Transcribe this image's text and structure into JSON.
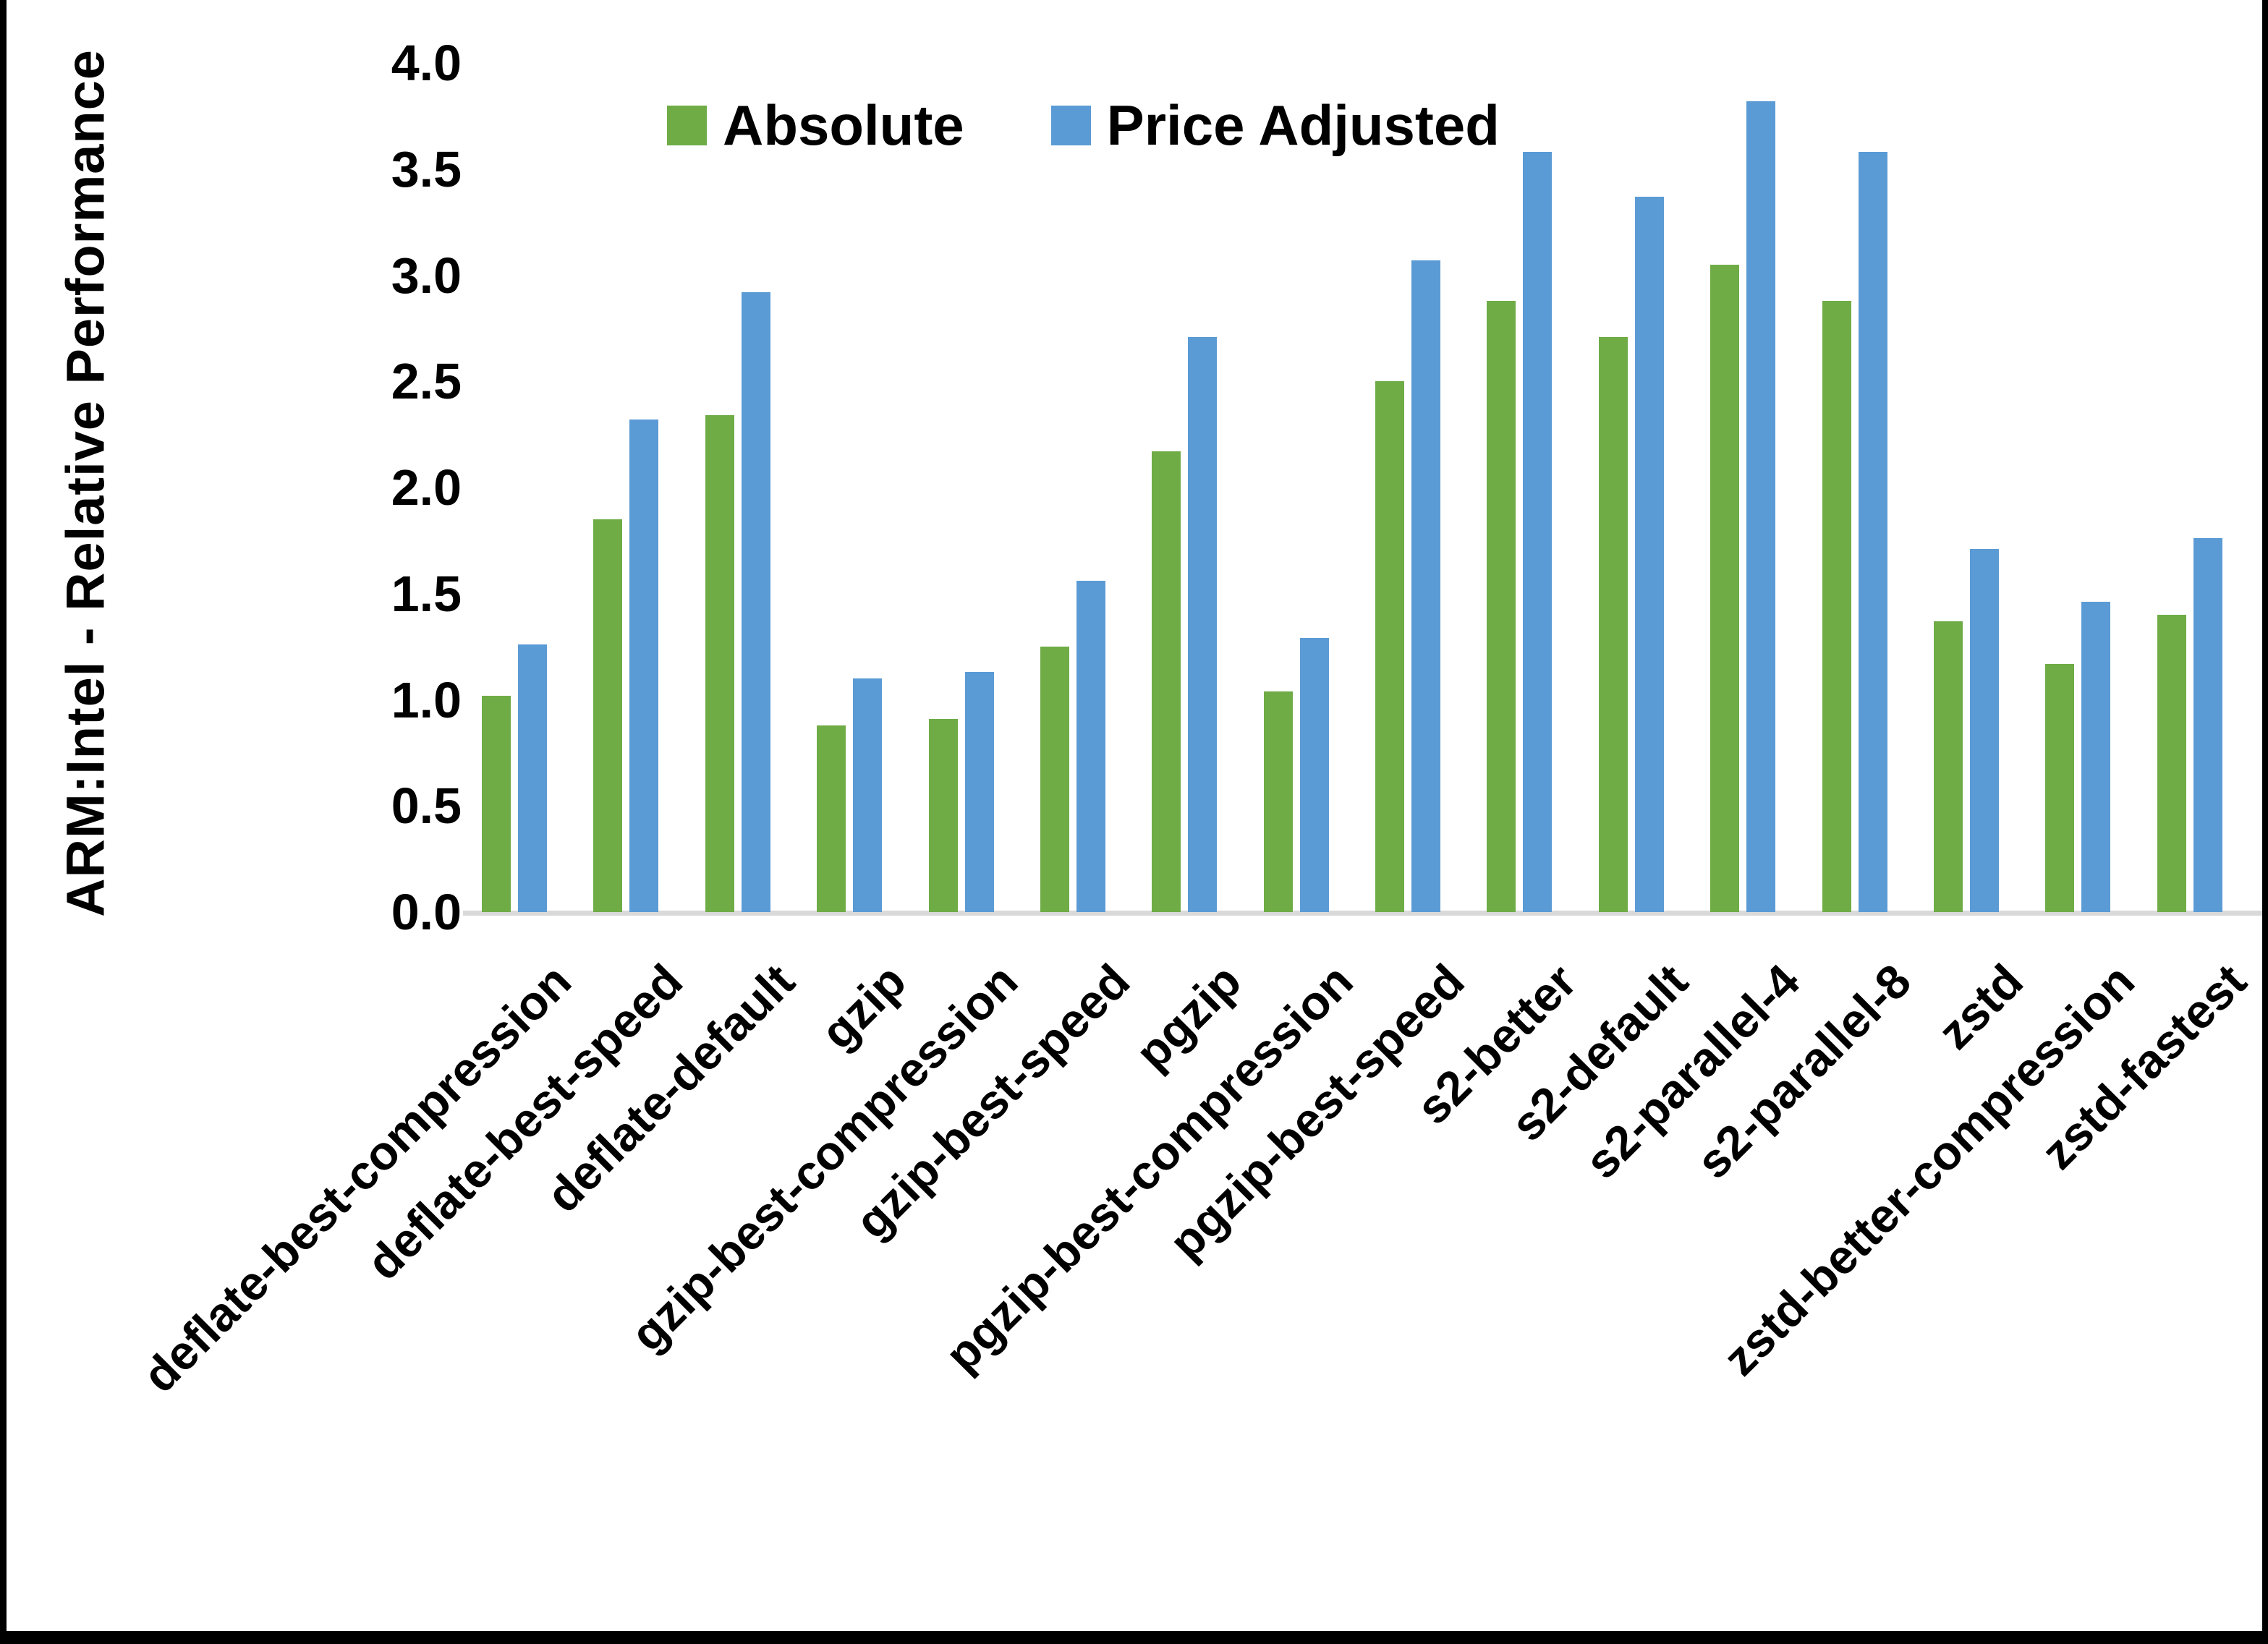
{
  "y_axis": {
    "title": "ARM:Intel - Relative Performance"
  },
  "chart_data": {
    "type": "bar",
    "title": "",
    "xlabel": "",
    "ylabel": "ARM:Intel - Relative Performance",
    "ylim": [
      0.0,
      4.0
    ],
    "ytick_step": 0.5,
    "ytick_labels": [
      "0.0",
      "0.5",
      "1.0",
      "1.5",
      "2.0",
      "2.5",
      "3.0",
      "3.5",
      "4.0"
    ],
    "grid": false,
    "legend_position": "top-center",
    "categories": [
      "deflate-best-compression",
      "deflate-best-speed",
      "deflate-default",
      "gzip",
      "gzip-best-compression",
      "gzip-best-speed",
      "pgzip",
      "pgzip-best-compression",
      "pgzip-best-speed",
      "s2-better",
      "s2-default",
      "s2-parallel-4",
      "s2-parallel-8",
      "zstd",
      "zstd-better-compression",
      "zstd-fastest"
    ],
    "series": [
      {
        "name": "Absolute",
        "color": "#6fac46",
        "values": [
          1.02,
          1.85,
          2.34,
          0.88,
          0.91,
          1.25,
          2.17,
          1.04,
          2.5,
          2.88,
          2.71,
          3.05,
          2.88,
          1.37,
          1.17,
          1.4
        ]
      },
      {
        "name": "Price Adjusted",
        "color": "#5b9bd5",
        "values": [
          1.26,
          2.32,
          2.92,
          1.1,
          1.13,
          1.56,
          2.71,
          1.29,
          3.07,
          3.58,
          3.37,
          3.82,
          3.58,
          1.71,
          1.46,
          1.76
        ]
      }
    ],
    "baseline_color": "#d9d9d9",
    "border_color": "#000000"
  }
}
